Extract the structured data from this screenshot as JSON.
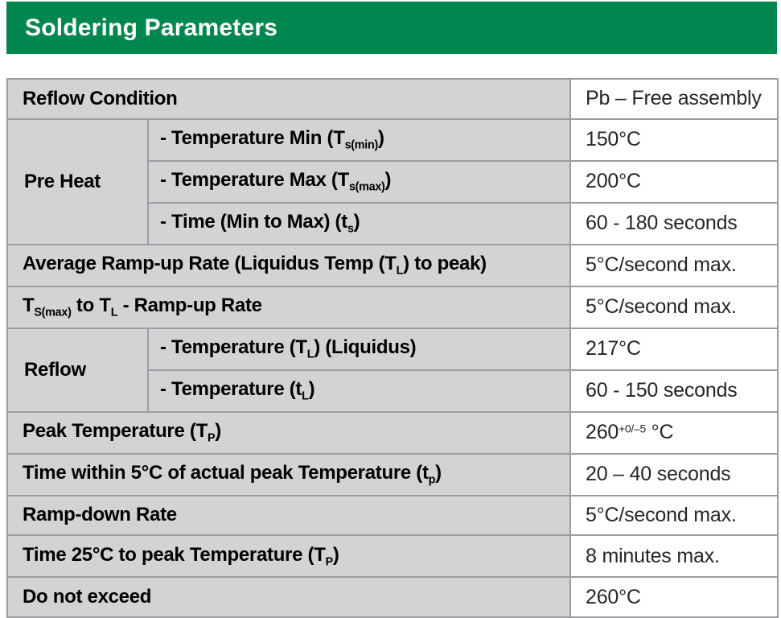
{
  "header": {
    "title": "Soldering Parameters",
    "bg_color": "#008750",
    "text_color": "#ffffff"
  },
  "table": {
    "colors": {
      "label_bg": "#d2d3d5",
      "value_bg": "#ffffff",
      "border": "#9b9da0",
      "label_text": "#000000",
      "value_text": "#262626"
    },
    "rows": [
      {
        "label": [
          {
            "t": "Reflow Condition"
          }
        ],
        "value": [
          {
            "t": "Pb – Free assembly"
          }
        ]
      },
      {
        "group": "Pre Heat",
        "label": [
          {
            "t": "- Temperature Min (T"
          },
          {
            "t": "s(min)",
            "s": "sub"
          },
          {
            "t": ")"
          }
        ],
        "value": [
          {
            "t": "150°C"
          }
        ]
      },
      {
        "label": [
          {
            "t": "- Temperature Max (T"
          },
          {
            "t": "s(max)",
            "s": "sub"
          },
          {
            "t": ")"
          }
        ],
        "value": [
          {
            "t": "200°C"
          }
        ]
      },
      {
        "label": [
          {
            "t": "- Time (Min to Max) (t"
          },
          {
            "t": "s",
            "s": "sub"
          },
          {
            "t": ")"
          }
        ],
        "value": [
          {
            "t": "60 - 180 seconds"
          }
        ]
      },
      {
        "label": [
          {
            "t": "Average Ramp-up Rate (Liquidus Temp (T"
          },
          {
            "t": "L",
            "s": "sub"
          },
          {
            "t": ") to peak)"
          }
        ],
        "value": [
          {
            "t": "5°C/second max."
          }
        ]
      },
      {
        "label": [
          {
            "t": "T"
          },
          {
            "t": "S(max)",
            "s": "sub"
          },
          {
            "t": " to T"
          },
          {
            "t": "L",
            "s": "sub"
          },
          {
            "t": " - Ramp-up Rate"
          }
        ],
        "value": [
          {
            "t": "5°C/second max."
          }
        ]
      },
      {
        "group": "Reflow",
        "label": [
          {
            "t": "- Temperature (T"
          },
          {
            "t": "L",
            "s": "sub"
          },
          {
            "t": ") (Liquidus)"
          }
        ],
        "value": [
          {
            "t": "217°C"
          }
        ]
      },
      {
        "label": [
          {
            "t": "- Temperature (t"
          },
          {
            "t": "L",
            "s": "sub"
          },
          {
            "t": ")"
          }
        ],
        "value": [
          {
            "t": "60 - 150 seconds"
          }
        ]
      },
      {
        "label": [
          {
            "t": "Peak Temperature (T"
          },
          {
            "t": "P",
            "s": "sub"
          },
          {
            "t": ")"
          }
        ],
        "value": [
          {
            "t": "260"
          },
          {
            "t": "+0/–5",
            "s": "sup"
          },
          {
            "t": " °C"
          }
        ]
      },
      {
        "label": [
          {
            "t": "Time within 5°C of actual peak Temperature (t"
          },
          {
            "t": "p",
            "s": "sub"
          },
          {
            "t": ")"
          }
        ],
        "value": [
          {
            "t": "20 – 40 seconds"
          }
        ]
      },
      {
        "label": [
          {
            "t": "Ramp-down Rate"
          }
        ],
        "value": [
          {
            "t": "5°C/second max."
          }
        ]
      },
      {
        "label": [
          {
            "t": "Time 25°C to peak Temperature (T"
          },
          {
            "t": "P",
            "s": "sub"
          },
          {
            "t": ")"
          }
        ],
        "value": [
          {
            "t": "8 minutes max."
          }
        ]
      },
      {
        "label": [
          {
            "t": "Do not exceed"
          }
        ],
        "value": [
          {
            "t": "260°C"
          }
        ]
      }
    ]
  }
}
